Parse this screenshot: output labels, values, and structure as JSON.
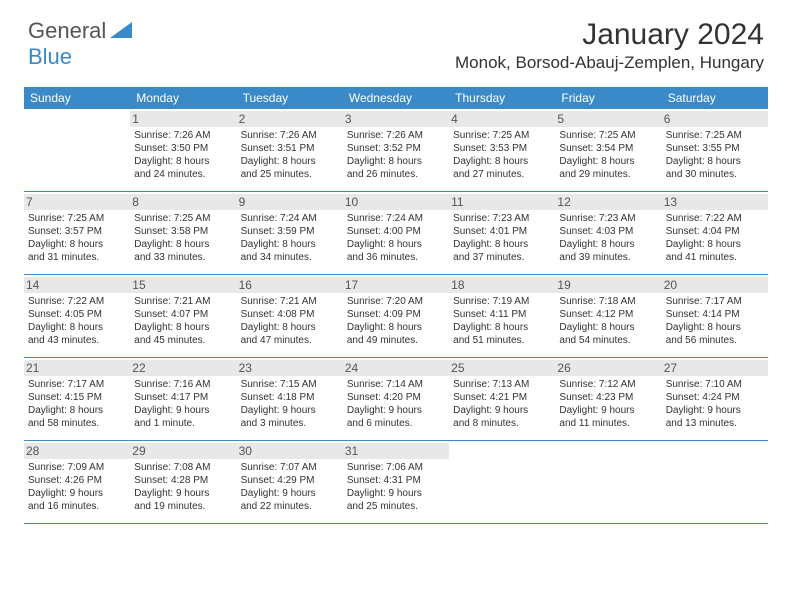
{
  "logo": {
    "text1": "General",
    "text2": "Blue"
  },
  "title": "January 2024",
  "location": "Monok, Borsod-Abauj-Zemplen, Hungary",
  "colors": {
    "accent": "#3a8ac9",
    "gray_band": "#e8e8e8",
    "text": "#333333"
  },
  "weekdays": [
    "Sunday",
    "Monday",
    "Tuesday",
    "Wednesday",
    "Thursday",
    "Friday",
    "Saturday"
  ],
  "weeks": [
    [
      {
        "day": "",
        "sunrise": "",
        "sunset": "",
        "dl1": "",
        "dl2": ""
      },
      {
        "day": "1",
        "sunrise": "Sunrise: 7:26 AM",
        "sunset": "Sunset: 3:50 PM",
        "dl1": "Daylight: 8 hours",
        "dl2": "and 24 minutes."
      },
      {
        "day": "2",
        "sunrise": "Sunrise: 7:26 AM",
        "sunset": "Sunset: 3:51 PM",
        "dl1": "Daylight: 8 hours",
        "dl2": "and 25 minutes."
      },
      {
        "day": "3",
        "sunrise": "Sunrise: 7:26 AM",
        "sunset": "Sunset: 3:52 PM",
        "dl1": "Daylight: 8 hours",
        "dl2": "and 26 minutes."
      },
      {
        "day": "4",
        "sunrise": "Sunrise: 7:25 AM",
        "sunset": "Sunset: 3:53 PM",
        "dl1": "Daylight: 8 hours",
        "dl2": "and 27 minutes."
      },
      {
        "day": "5",
        "sunrise": "Sunrise: 7:25 AM",
        "sunset": "Sunset: 3:54 PM",
        "dl1": "Daylight: 8 hours",
        "dl2": "and 29 minutes."
      },
      {
        "day": "6",
        "sunrise": "Sunrise: 7:25 AM",
        "sunset": "Sunset: 3:55 PM",
        "dl1": "Daylight: 8 hours",
        "dl2": "and 30 minutes."
      }
    ],
    [
      {
        "day": "7",
        "sunrise": "Sunrise: 7:25 AM",
        "sunset": "Sunset: 3:57 PM",
        "dl1": "Daylight: 8 hours",
        "dl2": "and 31 minutes."
      },
      {
        "day": "8",
        "sunrise": "Sunrise: 7:25 AM",
        "sunset": "Sunset: 3:58 PM",
        "dl1": "Daylight: 8 hours",
        "dl2": "and 33 minutes."
      },
      {
        "day": "9",
        "sunrise": "Sunrise: 7:24 AM",
        "sunset": "Sunset: 3:59 PM",
        "dl1": "Daylight: 8 hours",
        "dl2": "and 34 minutes."
      },
      {
        "day": "10",
        "sunrise": "Sunrise: 7:24 AM",
        "sunset": "Sunset: 4:00 PM",
        "dl1": "Daylight: 8 hours",
        "dl2": "and 36 minutes."
      },
      {
        "day": "11",
        "sunrise": "Sunrise: 7:23 AM",
        "sunset": "Sunset: 4:01 PM",
        "dl1": "Daylight: 8 hours",
        "dl2": "and 37 minutes."
      },
      {
        "day": "12",
        "sunrise": "Sunrise: 7:23 AM",
        "sunset": "Sunset: 4:03 PM",
        "dl1": "Daylight: 8 hours",
        "dl2": "and 39 minutes."
      },
      {
        "day": "13",
        "sunrise": "Sunrise: 7:22 AM",
        "sunset": "Sunset: 4:04 PM",
        "dl1": "Daylight: 8 hours",
        "dl2": "and 41 minutes."
      }
    ],
    [
      {
        "day": "14",
        "sunrise": "Sunrise: 7:22 AM",
        "sunset": "Sunset: 4:05 PM",
        "dl1": "Daylight: 8 hours",
        "dl2": "and 43 minutes."
      },
      {
        "day": "15",
        "sunrise": "Sunrise: 7:21 AM",
        "sunset": "Sunset: 4:07 PM",
        "dl1": "Daylight: 8 hours",
        "dl2": "and 45 minutes."
      },
      {
        "day": "16",
        "sunrise": "Sunrise: 7:21 AM",
        "sunset": "Sunset: 4:08 PM",
        "dl1": "Daylight: 8 hours",
        "dl2": "and 47 minutes."
      },
      {
        "day": "17",
        "sunrise": "Sunrise: 7:20 AM",
        "sunset": "Sunset: 4:09 PM",
        "dl1": "Daylight: 8 hours",
        "dl2": "and 49 minutes."
      },
      {
        "day": "18",
        "sunrise": "Sunrise: 7:19 AM",
        "sunset": "Sunset: 4:11 PM",
        "dl1": "Daylight: 8 hours",
        "dl2": "and 51 minutes."
      },
      {
        "day": "19",
        "sunrise": "Sunrise: 7:18 AM",
        "sunset": "Sunset: 4:12 PM",
        "dl1": "Daylight: 8 hours",
        "dl2": "and 54 minutes."
      },
      {
        "day": "20",
        "sunrise": "Sunrise: 7:17 AM",
        "sunset": "Sunset: 4:14 PM",
        "dl1": "Daylight: 8 hours",
        "dl2": "and 56 minutes."
      }
    ],
    [
      {
        "day": "21",
        "sunrise": "Sunrise: 7:17 AM",
        "sunset": "Sunset: 4:15 PM",
        "dl1": "Daylight: 8 hours",
        "dl2": "and 58 minutes."
      },
      {
        "day": "22",
        "sunrise": "Sunrise: 7:16 AM",
        "sunset": "Sunset: 4:17 PM",
        "dl1": "Daylight: 9 hours",
        "dl2": "and 1 minute."
      },
      {
        "day": "23",
        "sunrise": "Sunrise: 7:15 AM",
        "sunset": "Sunset: 4:18 PM",
        "dl1": "Daylight: 9 hours",
        "dl2": "and 3 minutes."
      },
      {
        "day": "24",
        "sunrise": "Sunrise: 7:14 AM",
        "sunset": "Sunset: 4:20 PM",
        "dl1": "Daylight: 9 hours",
        "dl2": "and 6 minutes."
      },
      {
        "day": "25",
        "sunrise": "Sunrise: 7:13 AM",
        "sunset": "Sunset: 4:21 PM",
        "dl1": "Daylight: 9 hours",
        "dl2": "and 8 minutes."
      },
      {
        "day": "26",
        "sunrise": "Sunrise: 7:12 AM",
        "sunset": "Sunset: 4:23 PM",
        "dl1": "Daylight: 9 hours",
        "dl2": "and 11 minutes."
      },
      {
        "day": "27",
        "sunrise": "Sunrise: 7:10 AM",
        "sunset": "Sunset: 4:24 PM",
        "dl1": "Daylight: 9 hours",
        "dl2": "and 13 minutes."
      }
    ],
    [
      {
        "day": "28",
        "sunrise": "Sunrise: 7:09 AM",
        "sunset": "Sunset: 4:26 PM",
        "dl1": "Daylight: 9 hours",
        "dl2": "and 16 minutes."
      },
      {
        "day": "29",
        "sunrise": "Sunrise: 7:08 AM",
        "sunset": "Sunset: 4:28 PM",
        "dl1": "Daylight: 9 hours",
        "dl2": "and 19 minutes."
      },
      {
        "day": "30",
        "sunrise": "Sunrise: 7:07 AM",
        "sunset": "Sunset: 4:29 PM",
        "dl1": "Daylight: 9 hours",
        "dl2": "and 22 minutes."
      },
      {
        "day": "31",
        "sunrise": "Sunrise: 7:06 AM",
        "sunset": "Sunset: 4:31 PM",
        "dl1": "Daylight: 9 hours",
        "dl2": "and 25 minutes."
      },
      {
        "day": "",
        "sunrise": "",
        "sunset": "",
        "dl1": "",
        "dl2": ""
      },
      {
        "day": "",
        "sunrise": "",
        "sunset": "",
        "dl1": "",
        "dl2": ""
      },
      {
        "day": "",
        "sunrise": "",
        "sunset": "",
        "dl1": "",
        "dl2": ""
      }
    ]
  ]
}
